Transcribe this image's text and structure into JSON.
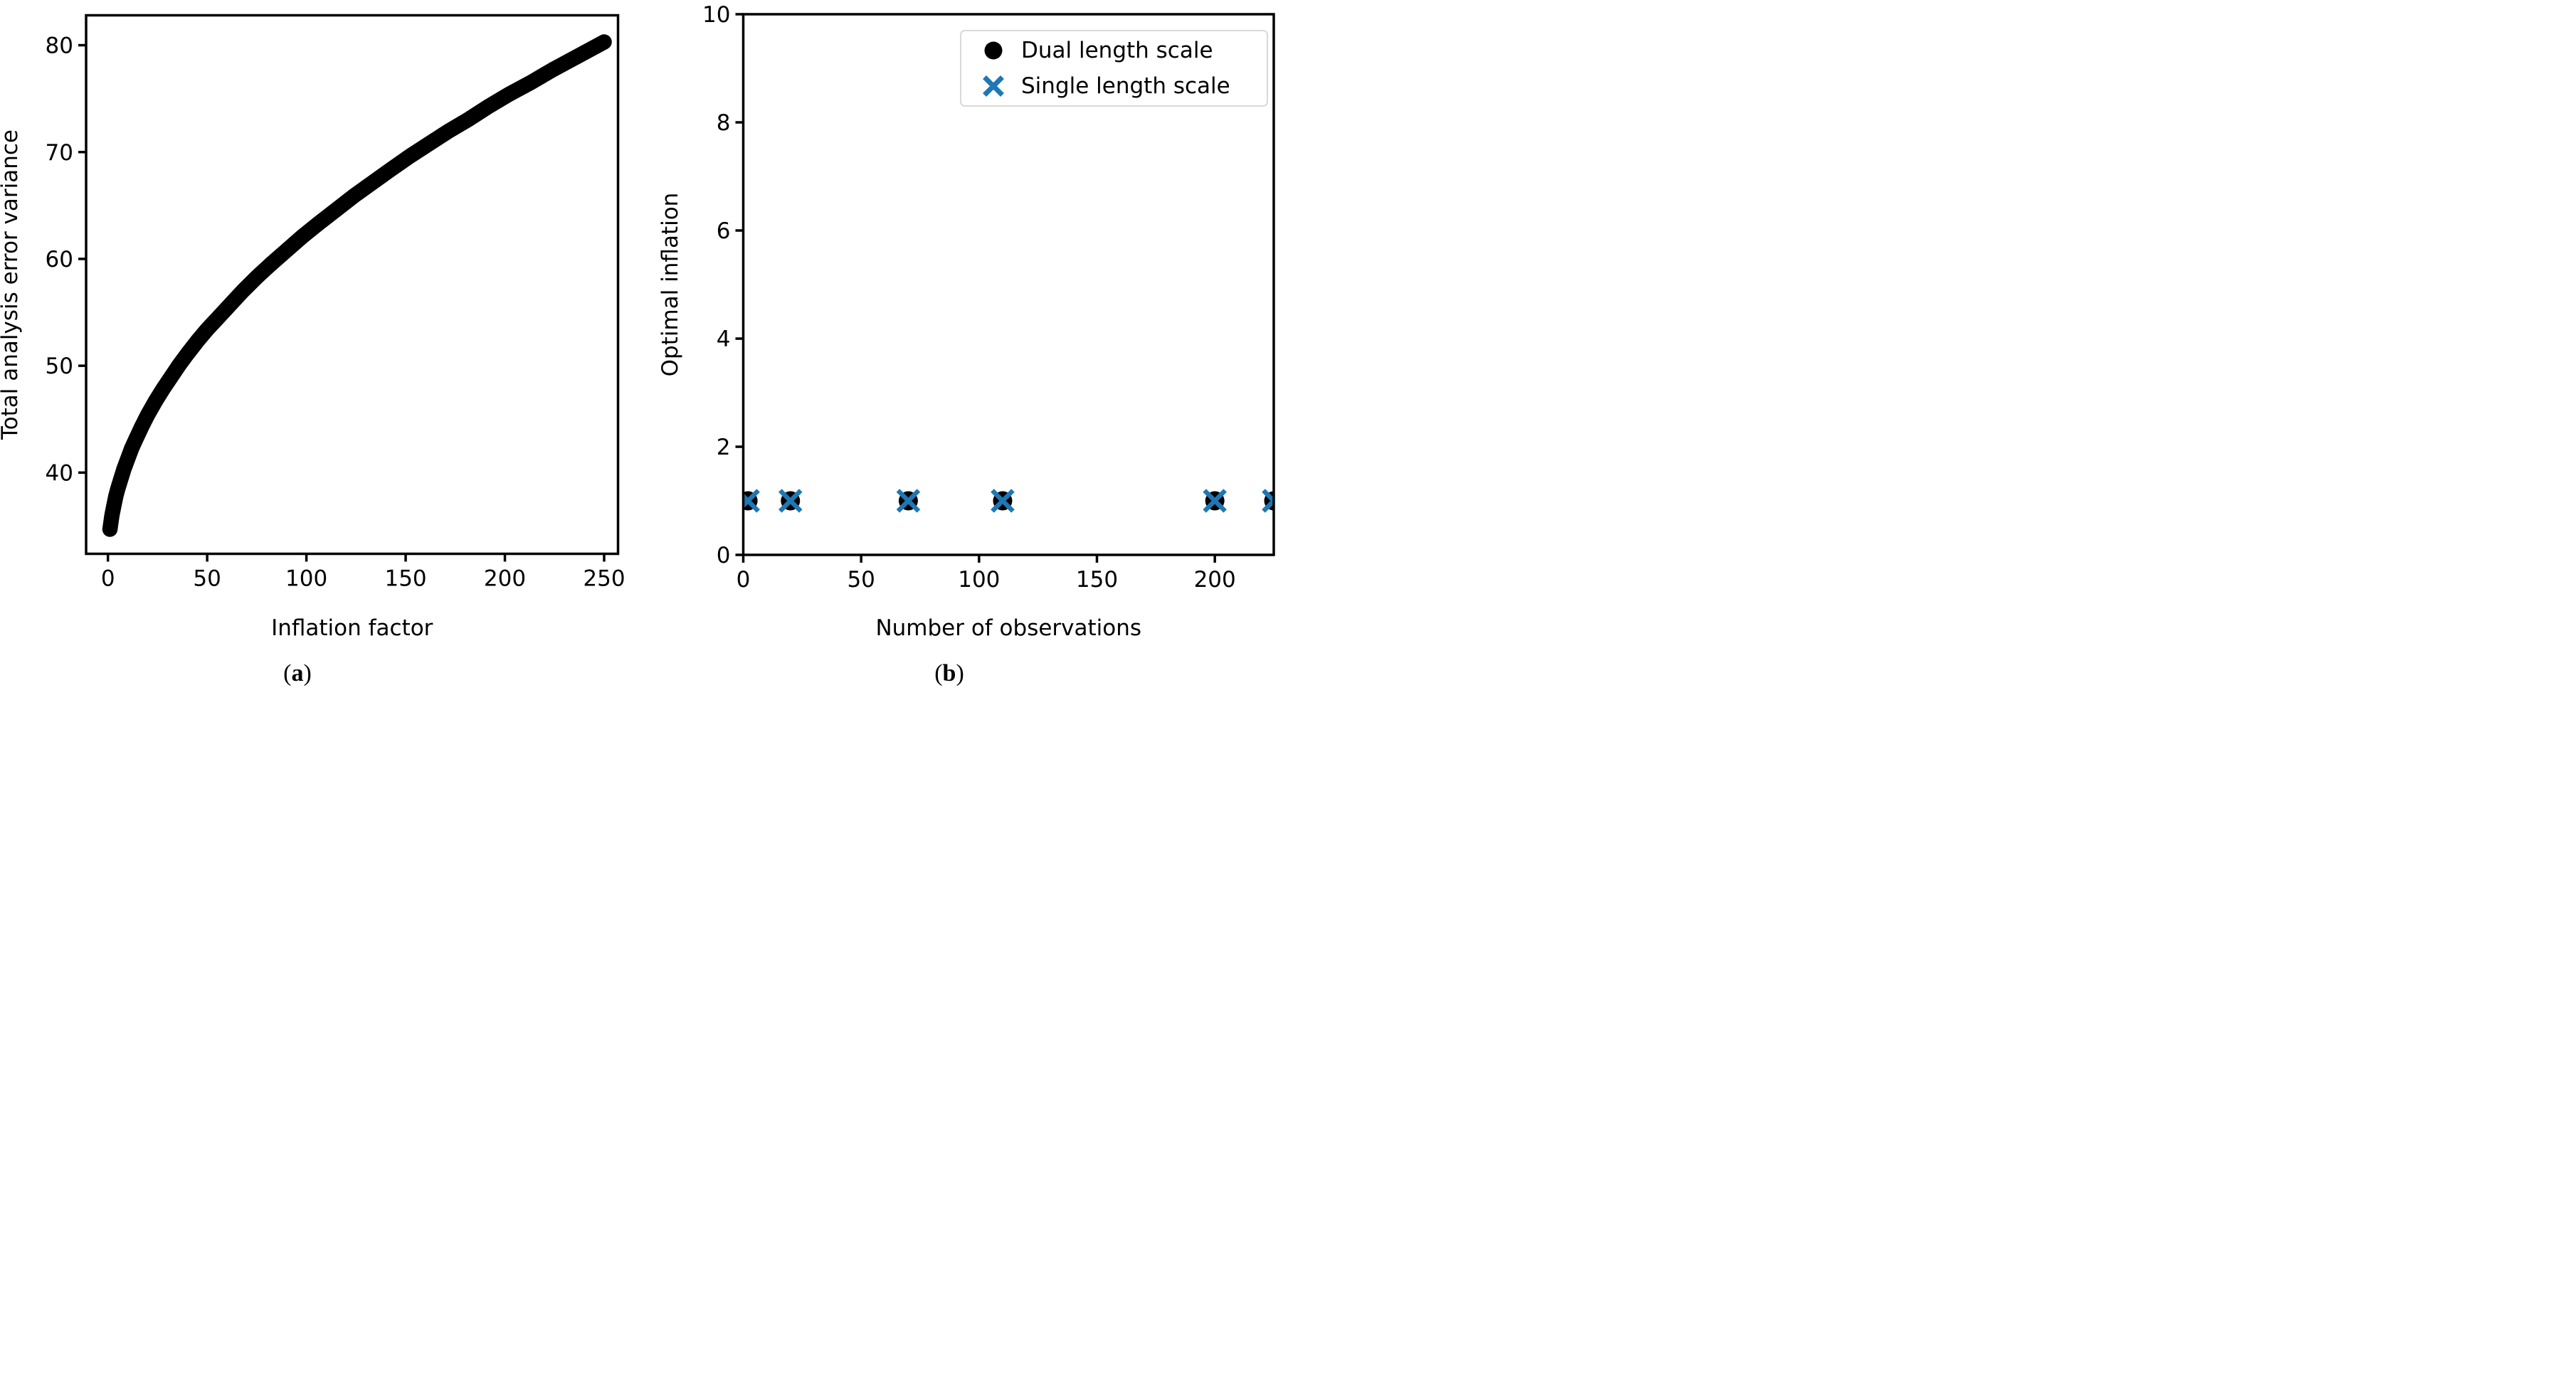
{
  "figure": {
    "background": "#ffffff",
    "captions": {
      "open": "(",
      "a": "a",
      "b": "b",
      "close": ")"
    }
  },
  "chart_data": [
    {
      "panel": "a",
      "type": "scatter",
      "title": "",
      "xlabel": "Inflation factor",
      "ylabel": "Total analysis error variance",
      "xlim": [
        -11,
        257
      ],
      "ylim": [
        32.4,
        82.8
      ],
      "xticks": [
        0,
        50,
        100,
        150,
        200,
        250
      ],
      "yticks": [
        40,
        50,
        60,
        70,
        80
      ],
      "grid": false,
      "legend": null,
      "series": [
        {
          "name": "Total analysis error variance",
          "marker": "dot-line",
          "color": "#000000",
          "x": [
            1,
            2,
            3,
            4,
            5,
            6,
            8,
            10,
            12,
            14,
            17,
            20,
            24,
            28,
            32,
            36,
            40,
            45,
            50,
            56,
            62,
            68,
            75,
            82,
            90,
            98,
            106,
            115,
            124,
            133,
            142,
            152,
            162,
            172,
            182,
            192,
            202,
            213,
            224,
            236,
            250
          ],
          "y": [
            34.7,
            36.0,
            36.9,
            37.8,
            38.5,
            39.1,
            40.3,
            41.3,
            42.3,
            43.1,
            44.3,
            45.4,
            46.7,
            47.9,
            49.0,
            50.1,
            51.1,
            52.3,
            53.4,
            54.6,
            55.8,
            57.0,
            58.3,
            59.5,
            60.8,
            62.1,
            63.3,
            64.6,
            65.9,
            67.1,
            68.3,
            69.6,
            70.8,
            72.0,
            73.1,
            74.3,
            75.4,
            76.5,
            77.7,
            78.9,
            80.3
          ]
        }
      ]
    },
    {
      "panel": "b",
      "type": "scatter",
      "title": "",
      "xlabel": "Number of observations",
      "ylabel": "Optimal inflation",
      "xlim": [
        0,
        225
      ],
      "ylim": [
        0,
        10
      ],
      "xticks": [
        0,
        50,
        100,
        150,
        200
      ],
      "yticks": [
        0,
        2,
        4,
        6,
        8,
        10
      ],
      "grid": false,
      "legend": {
        "position": "upper right",
        "entries": [
          {
            "label": "Dual length scale",
            "marker": "dot",
            "color": "#000000"
          },
          {
            "label": "Single length scale",
            "marker": "x",
            "color": "#1f77b4"
          }
        ]
      },
      "series": [
        {
          "name": "Dual length scale",
          "marker": "dot",
          "color": "#000000",
          "x": [
            2,
            20,
            70,
            110,
            200,
            225
          ],
          "y": [
            1,
            1,
            1,
            1,
            1,
            1
          ]
        },
        {
          "name": "Single length scale",
          "marker": "x",
          "color": "#1f77b4",
          "x": [
            2,
            20,
            70,
            110,
            200,
            225
          ],
          "y": [
            1,
            1,
            1,
            1,
            1,
            1
          ]
        }
      ]
    }
  ]
}
